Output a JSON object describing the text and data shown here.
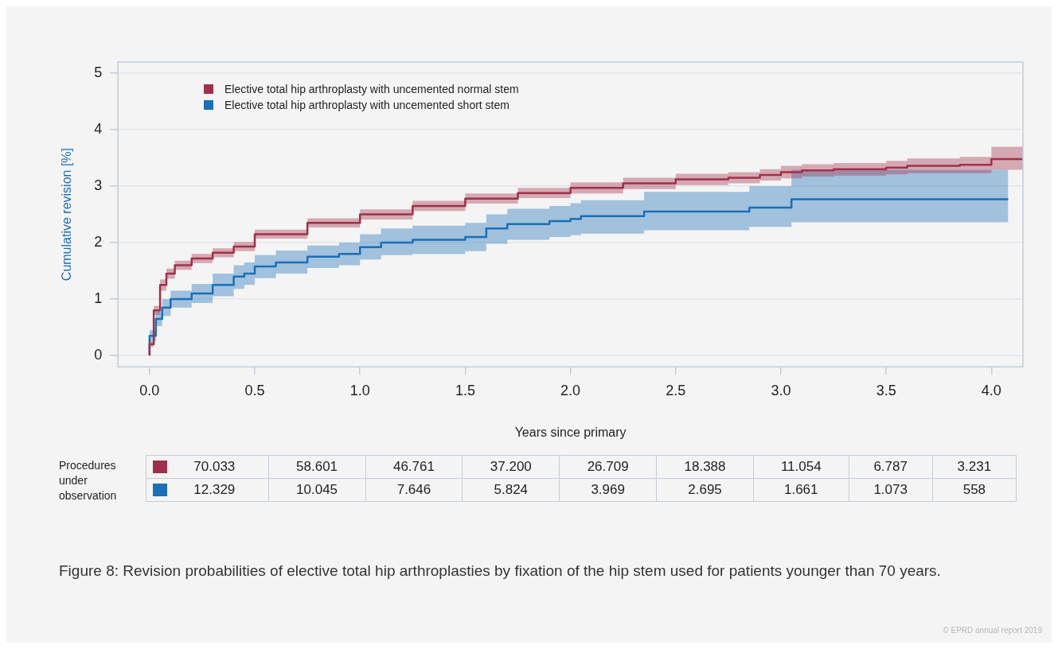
{
  "chart_data": {
    "type": "step",
    "xlabel": "Years since primary",
    "ylabel": "Cumulative revision [%]",
    "xlim": [
      -0.15,
      4.15
    ],
    "ylim": [
      -0.2,
      5.2
    ],
    "xticks": [
      {
        "value": 0,
        "label": "0.0"
      },
      0.5,
      {
        "value": 1,
        "label": "1.0"
      },
      1.5,
      {
        "value": 2,
        "label": "2.0"
      },
      2.5,
      {
        "value": 3,
        "label": "3.0"
      },
      3.5,
      {
        "value": 4,
        "label": "4.0"
      }
    ],
    "yticks": [
      0,
      1,
      2,
      3,
      4,
      5
    ],
    "grid": "y",
    "legend": "top left",
    "series": [
      {
        "name": "Elective total hip arthroplasty with uncemented normal stem",
        "color": "#a0304a",
        "x": [
          0,
          0.02,
          0.05,
          0.08,
          0.12,
          0.2,
          0.3,
          0.4,
          0.5,
          0.75,
          1.0,
          1.25,
          1.5,
          1.75,
          2.0,
          2.25,
          2.5,
          2.75,
          2.9,
          3.0,
          3.1,
          3.25,
          3.5,
          3.6,
          3.85,
          4.0,
          4.03,
          4.15
        ],
        "values": [
          0,
          0.2,
          0.8,
          1.25,
          1.45,
          1.6,
          1.72,
          1.82,
          1.93,
          2.15,
          2.35,
          2.5,
          2.65,
          2.78,
          2.88,
          2.97,
          3.05,
          3.12,
          3.15,
          3.2,
          3.25,
          3.28,
          3.3,
          3.33,
          3.36,
          3.38,
          3.48,
          3.48
        ],
        "lower": [
          0,
          0.15,
          0.72,
          1.15,
          1.36,
          1.52,
          1.64,
          1.74,
          1.85,
          2.07,
          2.27,
          2.41,
          2.56,
          2.69,
          2.79,
          2.87,
          2.95,
          3.02,
          3.05,
          3.1,
          3.14,
          3.17,
          3.19,
          3.21,
          3.23,
          3.23,
          3.29,
          3.29
        ],
        "upper": [
          0,
          0.25,
          0.88,
          1.35,
          1.54,
          1.68,
          1.8,
          1.9,
          2.01,
          2.23,
          2.43,
          2.59,
          2.74,
          2.87,
          2.97,
          3.07,
          3.15,
          3.22,
          3.25,
          3.3,
          3.36,
          3.39,
          3.41,
          3.45,
          3.49,
          3.52,
          3.7,
          3.7
        ]
      },
      {
        "name": "Elective total hip arthroplasty with uncemented short stem",
        "color": "#1a6fb8",
        "x": [
          0,
          0.03,
          0.06,
          0.1,
          0.2,
          0.3,
          0.4,
          0.45,
          0.5,
          0.6,
          0.75,
          0.9,
          1.0,
          1.1,
          1.25,
          1.5,
          1.6,
          1.7,
          1.9,
          2.0,
          2.05,
          2.35,
          2.85,
          3.05,
          3.86,
          4.08
        ],
        "values": [
          0,
          0.35,
          0.65,
          0.85,
          1.0,
          1.1,
          1.25,
          1.4,
          1.45,
          1.58,
          1.65,
          1.75,
          1.8,
          1.92,
          2.0,
          2.05,
          2.1,
          2.25,
          2.33,
          2.38,
          2.42,
          2.47,
          2.55,
          2.62,
          2.77,
          2.77
        ],
        "lower": [
          0,
          0.25,
          0.52,
          0.7,
          0.85,
          0.93,
          1.05,
          1.18,
          1.25,
          1.37,
          1.45,
          1.55,
          1.6,
          1.7,
          1.78,
          1.8,
          1.85,
          1.98,
          2.05,
          2.1,
          2.13,
          2.16,
          2.22,
          2.28,
          2.36,
          2.36
        ],
        "upper": [
          0,
          0.45,
          0.78,
          1.0,
          1.15,
          1.27,
          1.45,
          1.6,
          1.65,
          1.78,
          1.86,
          1.95,
          2.0,
          2.15,
          2.25,
          2.3,
          2.35,
          2.5,
          2.6,
          2.65,
          2.7,
          2.75,
          2.9,
          3.0,
          3.29,
          3.29
        ]
      }
    ],
    "annotations": [
      "Procedures under observation",
      "70.033",
      "58.601",
      "46.761",
      "37.200",
      "26.709",
      "18.388",
      "11.054",
      "6.787",
      "3.231",
      "12.329",
      "10.045",
      "7.646",
      "5.824",
      "3.969",
      "2.695",
      "1.661",
      "1.073",
      "558",
      "Figure 8: Revision probabilities of elective total hip arthroplasties by fixation of the hip stem used for patients younger than 70 years.",
      "© EPRD annual report 2019"
    ]
  }
}
